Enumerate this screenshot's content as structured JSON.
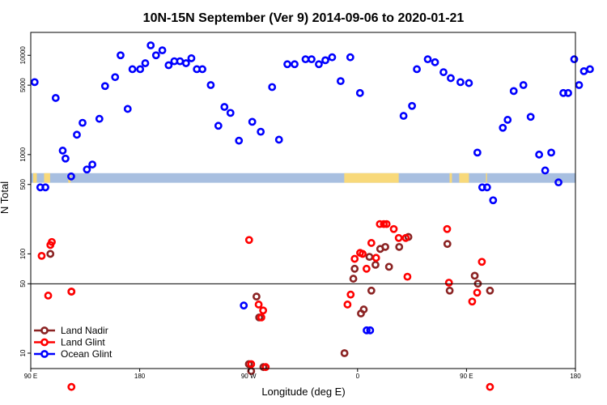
{
  "chart_data": {
    "type": "scatter",
    "title": "10N-15N September (Ver 9)   2014-09-06 to 2020-01-21",
    "xlabel": "Longitude (deg E)",
    "ylabel": "N Total",
    "y_scale": "log",
    "x_ticks": [
      {
        "value": 90,
        "label": "90 E"
      },
      {
        "value": 180,
        "label": "180"
      },
      {
        "value": 270,
        "label": "90 W"
      },
      {
        "value": 360,
        "label": "0"
      },
      {
        "value": 450,
        "label": "90 E"
      },
      {
        "value": 540,
        "label": "180"
      }
    ],
    "xlim": [
      90,
      540
    ],
    "ylim": [
      7,
      17000
    ],
    "y_ticks": [
      {
        "value": 10,
        "label": "10"
      },
      {
        "value": 50,
        "label": "50"
      },
      {
        "value": 100,
        "label": "100"
      },
      {
        "value": 500,
        "label": "500"
      },
      {
        "value": 1000,
        "label": "1000"
      },
      {
        "value": 5000,
        "label": "5000"
      },
      {
        "value": 10000,
        "label": "10000"
      }
    ],
    "break_line_at": 50,
    "grid": false,
    "legend_position": "bottom-left",
    "series": [
      {
        "name": "Land Nadir",
        "color": "#8b2323",
        "points": [
          [
            106.2,
            2.0
          ],
          [
            123.6,
            1.62
          ],
          [
            270.2,
            0.89
          ],
          [
            272.1,
            0.82
          ],
          [
            276.5,
            1.57
          ],
          [
            278.7,
            1.36
          ],
          [
            282.2,
            0.86
          ],
          [
            349.2,
            1.0
          ],
          [
            356.5,
            1.75
          ],
          [
            357.6,
            1.85
          ],
          [
            362.8,
            1.4
          ],
          [
            365.1,
            1.44
          ],
          [
            369.8,
            1.97
          ],
          [
            371.4,
            1.63
          ],
          [
            374.8,
            1.89
          ],
          [
            378.7,
            2.05
          ],
          [
            382.9,
            2.07
          ],
          [
            386.0,
            1.87
          ],
          [
            394.4,
            2.07
          ],
          [
            402.0,
            2.17
          ],
          [
            434.2,
            2.1
          ],
          [
            436.1,
            1.63
          ],
          [
            456.8,
            1.78
          ],
          [
            459.4,
            1.7
          ],
          [
            469.4,
            1.63
          ]
        ]
      },
      {
        "name": "Land Glint",
        "color": "#ff0000",
        "points": [
          [
            99.0,
            1.98
          ],
          [
            104.4,
            1.58
          ],
          [
            106.2,
            2.09
          ],
          [
            107.4,
            2.12
          ],
          [
            123.6,
            1.62
          ],
          [
            123.6,
            0.66
          ],
          [
            270.4,
            2.14
          ],
          [
            272.1,
            0.89
          ],
          [
            278.3,
            1.49
          ],
          [
            280.5,
            1.36
          ],
          [
            282.0,
            1.43
          ],
          [
            284.1,
            0.86
          ],
          [
            351.7,
            1.49
          ],
          [
            354.3,
            1.59
          ],
          [
            357.6,
            1.95
          ],
          [
            362.1,
            2.01
          ],
          [
            364.2,
            2.0
          ],
          [
            367.4,
            1.85
          ],
          [
            371.4,
            2.11
          ],
          [
            375.3,
            1.96
          ],
          [
            378.4,
            2.3
          ],
          [
            381.7,
            2.3
          ],
          [
            384.0,
            2.3
          ],
          [
            389.9,
            2.25
          ],
          [
            394.0,
            2.16
          ],
          [
            399.8,
            2.16
          ],
          [
            401.2,
            1.77
          ],
          [
            434.0,
            2.25
          ],
          [
            435.5,
            1.71
          ],
          [
            454.7,
            1.52
          ],
          [
            458.8,
            1.61
          ],
          [
            462.7,
            1.92
          ],
          [
            469.4,
            0.66
          ]
        ]
      },
      {
        "name": "Ocean Glint",
        "color": "#0000ff",
        "points": [
          [
            93.2,
            3.73
          ],
          [
            97.9,
            2.67
          ],
          [
            102.1,
            2.67
          ],
          [
            110.6,
            3.57
          ],
          [
            116.4,
            3.04
          ],
          [
            118.7,
            2.96
          ],
          [
            123.4,
            2.78
          ],
          [
            128.1,
            3.2
          ],
          [
            132.8,
            3.32
          ],
          [
            136.4,
            2.85
          ],
          [
            140.9,
            2.9
          ],
          [
            146.7,
            3.36
          ],
          [
            151.4,
            3.69
          ],
          [
            159.7,
            3.78
          ],
          [
            164.2,
            4.0
          ],
          [
            170.1,
            3.46
          ],
          [
            174.0,
            3.86
          ],
          [
            180.4,
            3.86
          ],
          [
            184.6,
            3.92
          ],
          [
            189.1,
            4.1
          ],
          [
            193.5,
            4.0
          ],
          [
            198.7,
            4.05
          ],
          [
            203.9,
            3.9
          ],
          [
            208.6,
            3.94
          ],
          [
            213.3,
            3.94
          ],
          [
            218.3,
            3.92
          ],
          [
            222.7,
            3.97
          ],
          [
            227.2,
            3.86
          ],
          [
            231.8,
            3.86
          ],
          [
            238.7,
            3.7
          ],
          [
            245.0,
            3.29
          ],
          [
            250.0,
            3.48
          ],
          [
            255.0,
            3.42
          ],
          [
            262.0,
            3.14
          ],
          [
            266.0,
            1.48
          ],
          [
            273.0,
            3.33
          ],
          [
            280.0,
            3.23
          ],
          [
            289.4,
            3.68
          ],
          [
            295.1,
            3.15
          ],
          [
            302.0,
            3.91
          ],
          [
            308.0,
            3.91
          ],
          [
            317.0,
            3.96
          ],
          [
            322.0,
            3.96
          ],
          [
            328.0,
            3.91
          ],
          [
            333.4,
            3.95
          ],
          [
            339.0,
            3.98
          ],
          [
            346.0,
            3.74
          ],
          [
            354.0,
            3.98
          ],
          [
            362.0,
            3.62
          ],
          [
            367.5,
            1.23
          ],
          [
            370.4,
            1.23
          ],
          [
            390.0,
            0.39
          ],
          [
            398.0,
            3.39
          ],
          [
            405.0,
            3.49
          ],
          [
            409.0,
            3.86
          ],
          [
            418.0,
            3.96
          ],
          [
            424.0,
            3.93
          ],
          [
            431.0,
            3.83
          ],
          [
            437.0,
            3.77
          ],
          [
            445.0,
            3.73
          ],
          [
            452.0,
            3.72
          ],
          [
            459.0,
            3.02
          ],
          [
            463.0,
            2.67
          ],
          [
            467.0,
            2.67
          ],
          [
            472.0,
            2.54
          ],
          [
            480.0,
            3.27
          ],
          [
            484.0,
            3.35
          ],
          [
            489.0,
            3.64
          ],
          [
            497.0,
            3.7
          ],
          [
            503.0,
            3.38
          ],
          [
            510.0,
            3.0
          ],
          [
            515.0,
            2.84
          ],
          [
            520.0,
            3.02
          ],
          [
            526.0,
            2.72
          ],
          [
            530.0,
            3.62
          ],
          [
            534.0,
            3.62
          ],
          [
            539.0,
            3.96
          ],
          [
            543.0,
            3.7
          ],
          [
            547.0,
            3.84
          ],
          [
            552.0,
            3.86
          ]
        ]
      }
    ]
  }
}
